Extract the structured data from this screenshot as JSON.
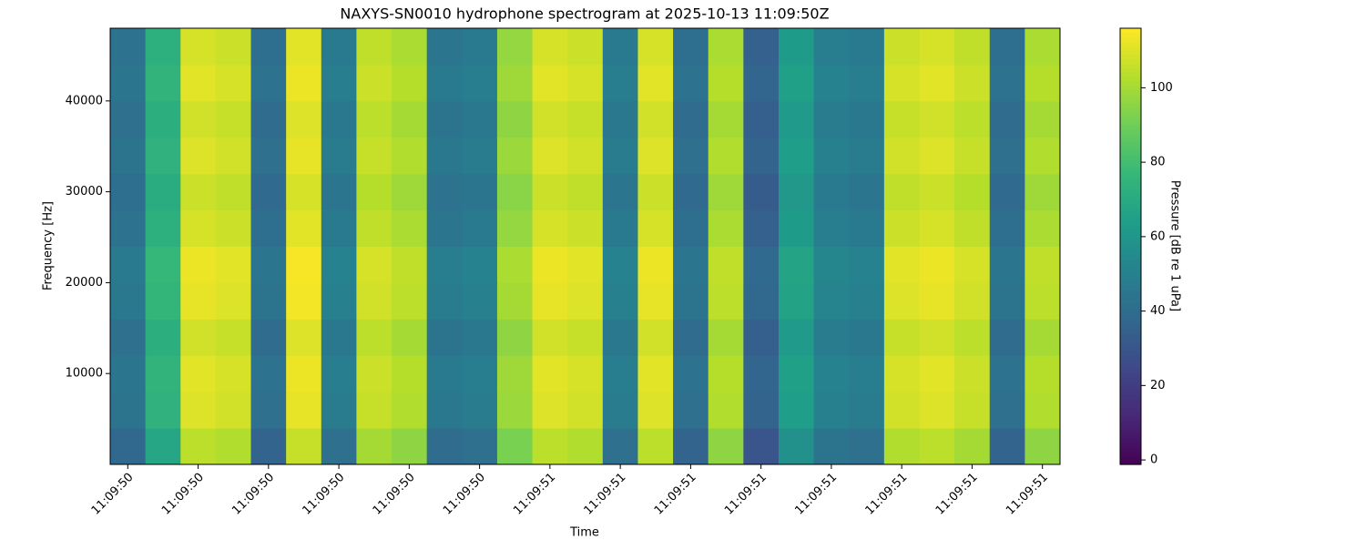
{
  "chart_data": {
    "type": "heatmap",
    "title": "NAXYS-SN0010 hydrophone spectrogram at 2025-10-13 11:09:50Z",
    "x_label": "Time",
    "y_label": "Frequency [Hz]",
    "colorbar_label": "Pressure [dB re 1 uPa]",
    "colormap": "viridis",
    "x": [
      50.52,
      50.56,
      50.6,
      50.64,
      50.68,
      50.72,
      50.76,
      50.8,
      50.84,
      50.88,
      50.92,
      50.96,
      51.0,
      51.04,
      51.08,
      51.12,
      51.16,
      51.2,
      51.24,
      51.28,
      51.32,
      51.36,
      51.4,
      51.44,
      51.48,
      51.52,
      51.56
    ],
    "y": [
      2000,
      6000,
      10000,
      14000,
      18000,
      22000,
      26000,
      30000,
      34000,
      38000,
      42000,
      46000
    ],
    "values": [
      [
        38,
        68,
        104,
        102,
        36,
        106,
        42,
        100,
        96,
        40,
        42,
        92,
        104,
        102,
        42,
        104,
        36,
        96,
        30,
        58,
        44,
        42,
        102,
        104,
        100,
        36,
        96
      ],
      [
        44,
        74,
        110,
        108,
        42,
        112,
        48,
        106,
        102,
        46,
        48,
        98,
        110,
        108,
        48,
        110,
        42,
        102,
        36,
        64,
        50,
        48,
        108,
        110,
        106,
        42,
        102
      ],
      [
        45,
        75,
        111,
        109,
        43,
        113,
        49,
        107,
        103,
        47,
        49,
        99,
        111,
        109,
        49,
        111,
        43,
        103,
        37,
        65,
        51,
        49,
        109,
        111,
        107,
        43,
        103
      ],
      [
        42,
        72,
        108,
        106,
        40,
        110,
        46,
        104,
        100,
        44,
        46,
        96,
        108,
        106,
        46,
        108,
        40,
        100,
        34,
        62,
        48,
        46,
        106,
        108,
        104,
        40,
        100
      ],
      [
        46,
        76,
        112,
        110,
        44,
        114,
        50,
        108,
        104,
        48,
        50,
        100,
        112,
        110,
        50,
        112,
        44,
        104,
        38,
        66,
        52,
        50,
        110,
        112,
        108,
        44,
        104
      ],
      [
        47,
        77,
        113,
        111,
        45,
        115,
        51,
        109,
        105,
        49,
        51,
        101,
        113,
        111,
        51,
        113,
        45,
        105,
        39,
        67,
        53,
        51,
        111,
        113,
        109,
        45,
        105
      ],
      [
        43,
        73,
        109,
        107,
        41,
        111,
        47,
        105,
        101,
        45,
        47,
        97,
        109,
        107,
        47,
        109,
        41,
        101,
        35,
        63,
        49,
        47,
        107,
        109,
        105,
        41,
        101
      ],
      [
        41,
        71,
        107,
        105,
        39,
        109,
        45,
        103,
        99,
        43,
        45,
        95,
        107,
        105,
        45,
        107,
        39,
        99,
        33,
        61,
        47,
        45,
        105,
        107,
        103,
        39,
        99
      ],
      [
        44,
        74,
        110,
        108,
        42,
        112,
        48,
        106,
        102,
        46,
        48,
        98,
        110,
        108,
        48,
        110,
        42,
        102,
        36,
        64,
        50,
        48,
        108,
        110,
        106,
        42,
        102
      ],
      [
        42,
        72,
        108,
        106,
        40,
        110,
        46,
        104,
        100,
        44,
        46,
        96,
        108,
        106,
        46,
        108,
        40,
        100,
        34,
        62,
        48,
        46,
        106,
        108,
        104,
        40,
        100
      ],
      [
        45,
        75,
        111,
        109,
        43,
        113,
        49,
        107,
        103,
        47,
        49,
        99,
        111,
        109,
        49,
        111,
        43,
        103,
        37,
        65,
        51,
        49,
        109,
        111,
        107,
        43,
        103
      ],
      [
        43,
        73,
        109,
        107,
        41,
        111,
        47,
        105,
        101,
        45,
        47,
        97,
        109,
        107,
        47,
        109,
        41,
        101,
        35,
        63,
        49,
        47,
        107,
        109,
        105,
        41,
        101
      ]
    ],
    "xlim": [
      50.5,
      51.58
    ],
    "xticks": [
      {
        "value": 50.52,
        "label": "11:09:50"
      },
      {
        "value": 50.6,
        "label": "11:09:50"
      },
      {
        "value": 50.68,
        "label": "11:09:50"
      },
      {
        "value": 50.76,
        "label": "11:09:50"
      },
      {
        "value": 50.84,
        "label": "11:09:50"
      },
      {
        "value": 50.92,
        "label": "11:09:50"
      },
      {
        "value": 51.0,
        "label": "11:09:51"
      },
      {
        "value": 51.08,
        "label": "11:09:51"
      },
      {
        "value": 51.16,
        "label": "11:09:51"
      },
      {
        "value": 51.24,
        "label": "11:09:51"
      },
      {
        "value": 51.32,
        "label": "11:09:51"
      },
      {
        "value": 51.4,
        "label": "11:09:51"
      },
      {
        "value": 51.48,
        "label": "11:09:51"
      },
      {
        "value": 51.56,
        "label": "11:09:51"
      }
    ],
    "ylim": [
      0,
      48000
    ],
    "yticks": [
      10000,
      20000,
      30000,
      40000
    ],
    "clim": [
      -1.2,
      116
    ],
    "cticks": [
      0,
      20,
      40,
      60,
      80,
      100
    ]
  }
}
